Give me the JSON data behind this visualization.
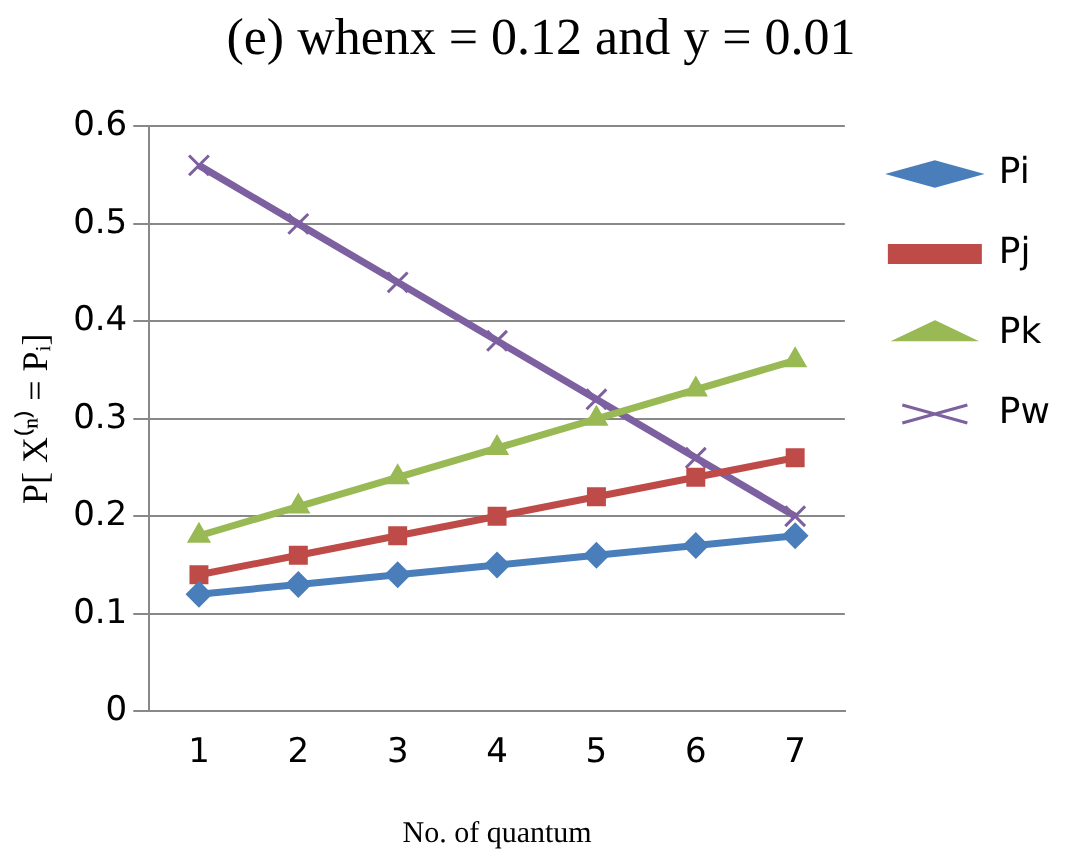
{
  "chart_data": {
    "type": "line",
    "title": "(e)  whenx = 0.12 and y = 0.01",
    "xlabel": "No. of quantum",
    "ylabel": "P[ X⁽ⁿ⁾ = Pᵢ]",
    "categories": [
      "1",
      "2",
      "3",
      "4",
      "5",
      "6",
      "7"
    ],
    "series": [
      {
        "name": "Pi",
        "color": "#4a7ebb",
        "marker": "diamond",
        "values": [
          0.12,
          0.13,
          0.14,
          0.15,
          0.16,
          0.17,
          0.18
        ]
      },
      {
        "name": "Pj",
        "color": "#be4b48",
        "marker": "square",
        "values": [
          0.14,
          0.16,
          0.18,
          0.2,
          0.22,
          0.24,
          0.26
        ]
      },
      {
        "name": "Pk",
        "color": "#98b954",
        "marker": "triangle",
        "values": [
          0.18,
          0.21,
          0.24,
          0.27,
          0.3,
          0.33,
          0.36
        ]
      },
      {
        "name": "Pw",
        "color": "#7d60a0",
        "marker": "cross",
        "values": [
          0.56,
          0.5,
          0.44,
          0.38,
          0.32,
          0.26,
          0.2
        ]
      }
    ],
    "ylim": [
      0,
      0.6
    ],
    "yticks": [
      0,
      0.1,
      0.2,
      0.3,
      0.4,
      0.5,
      0.6
    ],
    "grid": "y",
    "legend": "right",
    "line_style": "solid"
  }
}
